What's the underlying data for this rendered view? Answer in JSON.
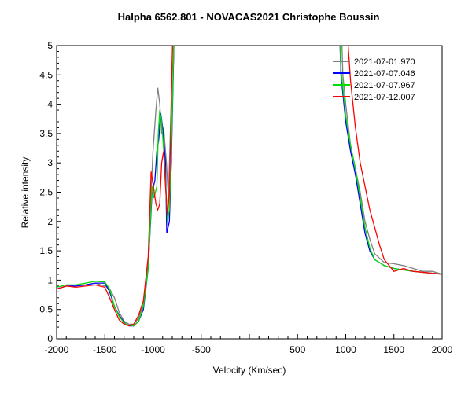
{
  "chart_data": {
    "type": "line",
    "title": "Halpha 6562.801 - NOVACAS2021   Christophe Boussin",
    "xlabel": "Velocity (Km/sec)",
    "ylabel": "Relative intensity",
    "xlim": [
      -2000,
      2000
    ],
    "ylim": [
      0,
      5
    ],
    "xticks": [
      -2000,
      -1500,
      -1000,
      -500,
      500,
      1000,
      1500,
      2000
    ],
    "xtick_labels": [
      "-2000",
      "-1500",
      "-1000",
      "-500",
      "500",
      "1000",
      "1500",
      "2000"
    ],
    "yticks": [
      0,
      0.5,
      1,
      1.5,
      2,
      2.5,
      3,
      3.5,
      4,
      4.5,
      5
    ],
    "ytick_labels": [
      "0",
      "0.5",
      "1",
      "1.5",
      "2",
      "2.5",
      "3",
      "3.5",
      "4",
      "4.5",
      "5"
    ],
    "grid": false,
    "legend_position": "top-right",
    "series": [
      {
        "name": "2021-07-01.970",
        "color": "#808080",
        "x": [
          -2000,
          -1900,
          -1800,
          -1700,
          -1600,
          -1500,
          -1450,
          -1400,
          -1350,
          -1300,
          -1250,
          -1200,
          -1150,
          -1100,
          -1050,
          -1020,
          -1000,
          -970,
          -950,
          -930,
          -910,
          -890,
          -860,
          -840,
          -820,
          -800,
          -785,
          950,
          970,
          1000,
          1050,
          1100,
          1150,
          1200,
          1250,
          1300,
          1400,
          1500,
          1600,
          1700,
          1800,
          1900,
          2000
        ],
        "y": [
          0.85,
          0.9,
          0.92,
          0.92,
          0.95,
          0.9,
          0.85,
          0.7,
          0.45,
          0.3,
          0.25,
          0.25,
          0.35,
          0.6,
          1.3,
          2.5,
          3.2,
          3.9,
          4.28,
          4.0,
          3.5,
          3.6,
          3.0,
          2.4,
          3.5,
          4.8,
          5.6,
          5.6,
          4.5,
          4.0,
          3.3,
          2.9,
          2.5,
          2.0,
          1.7,
          1.45,
          1.3,
          1.28,
          1.25,
          1.2,
          1.15,
          1.15,
          1.1
        ]
      },
      {
        "name": "2021-07-07.046",
        "color": "#0000ff",
        "x": [
          -2000,
          -1900,
          -1800,
          -1700,
          -1600,
          -1500,
          -1450,
          -1400,
          -1350,
          -1300,
          -1250,
          -1200,
          -1150,
          -1100,
          -1050,
          -1010,
          -980,
          -960,
          -940,
          -920,
          -900,
          -870,
          -857,
          -830,
          -810,
          -790,
          -775,
          930,
          950,
          1000,
          1050,
          1100,
          1150,
          1200,
          1250,
          1300,
          1400,
          1500,
          1700,
          2000
        ],
        "y": [
          0.85,
          0.9,
          0.9,
          0.92,
          0.95,
          0.95,
          0.8,
          0.55,
          0.4,
          0.28,
          0.22,
          0.22,
          0.3,
          0.5,
          1.2,
          2.5,
          2.7,
          3.2,
          3.4,
          3.85,
          3.6,
          3.0,
          1.8,
          2.0,
          3.0,
          4.5,
          5.6,
          5.6,
          4.5,
          3.7,
          3.2,
          2.8,
          2.3,
          1.8,
          1.5,
          1.35,
          1.25,
          1.2,
          1.15,
          1.1
        ]
      },
      {
        "name": "2021-07-07.967",
        "color": "#00dd00",
        "x": [
          -2000,
          -1900,
          -1800,
          -1700,
          -1600,
          -1500,
          -1450,
          -1400,
          -1350,
          -1300,
          -1250,
          -1200,
          -1150,
          -1100,
          -1050,
          -1010,
          -990,
          -960,
          -945,
          -930,
          -910,
          -880,
          -850,
          -830,
          -810,
          -790,
          -775,
          930,
          950,
          1000,
          1050,
          1100,
          1150,
          1200,
          1250,
          1300,
          1400,
          1500,
          1700,
          2000
        ],
        "y": [
          0.88,
          0.92,
          0.92,
          0.95,
          0.98,
          0.97,
          0.85,
          0.55,
          0.38,
          0.27,
          0.23,
          0.22,
          0.3,
          0.55,
          1.2,
          2.6,
          2.4,
          2.6,
          3.5,
          3.9,
          3.7,
          3.0,
          2.0,
          2.2,
          3.2,
          4.6,
          5.6,
          5.6,
          4.6,
          3.8,
          3.3,
          2.9,
          2.4,
          1.9,
          1.55,
          1.35,
          1.25,
          1.2,
          1.15,
          1.1
        ]
      },
      {
        "name": "2021-07-12.007",
        "color": "#ff0000",
        "x": [
          -2000,
          -1900,
          -1800,
          -1700,
          -1600,
          -1500,
          -1450,
          -1400,
          -1350,
          -1300,
          -1250,
          -1200,
          -1150,
          -1100,
          -1050,
          -1020,
          -1000,
          -970,
          -950,
          -930,
          -910,
          -890,
          -870,
          -850,
          -830,
          -810,
          -790,
          1000,
          1050,
          1100,
          1150,
          1200,
          1250,
          1300,
          1350,
          1400,
          1500,
          1600,
          1700,
          2000
        ],
        "y": [
          0.85,
          0.9,
          0.88,
          0.9,
          0.92,
          0.88,
          0.7,
          0.5,
          0.32,
          0.25,
          0.22,
          0.25,
          0.4,
          0.65,
          1.4,
          2.85,
          2.65,
          2.3,
          2.2,
          2.3,
          3.0,
          3.2,
          2.6,
          2.1,
          2.5,
          4.0,
          5.6,
          5.6,
          4.4,
          3.6,
          3.0,
          2.6,
          2.2,
          1.9,
          1.6,
          1.35,
          1.15,
          1.2,
          1.15,
          1.1
        ]
      }
    ]
  }
}
